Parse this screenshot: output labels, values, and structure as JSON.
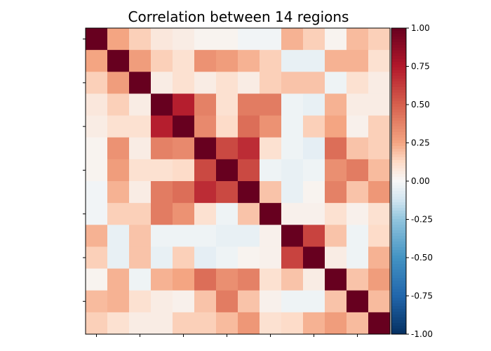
{
  "chart_data": {
    "type": "heatmap",
    "title": "Correlation between 14 regions",
    "xlabel": "",
    "ylabel": "",
    "size": 14,
    "colormap": "RdBu_r",
    "vmin": -1.0,
    "vmax": 1.0,
    "colorbar_ticks": [
      "1.00",
      "0.75",
      "0.50",
      "0.25",
      "0.00",
      "-0.25",
      "-0.50",
      "-0.75",
      "-1.00"
    ],
    "colorbar_values": [
      1.0,
      0.75,
      0.5,
      0.25,
      0.0,
      -0.25,
      -0.5,
      -0.75,
      -1.0
    ],
    "matrix": [
      [
        1.0,
        0.25,
        0.15,
        0.07,
        0.05,
        0.02,
        0.02,
        -0.02,
        -0.02,
        0.22,
        0.15,
        0.02,
        0.2,
        0.15
      ],
      [
        0.25,
        1.0,
        0.28,
        0.15,
        0.1,
        0.32,
        0.28,
        0.22,
        0.15,
        -0.05,
        -0.05,
        0.22,
        0.22,
        0.1
      ],
      [
        0.15,
        0.28,
        1.0,
        0.05,
        0.1,
        0.05,
        0.1,
        0.05,
        0.15,
        0.18,
        0.18,
        -0.03,
        0.1,
        0.05
      ],
      [
        0.07,
        0.15,
        0.05,
        1.0,
        0.73,
        0.38,
        0.1,
        0.4,
        0.4,
        -0.03,
        -0.05,
        0.22,
        0.05,
        0.05
      ],
      [
        0.05,
        0.1,
        0.1,
        0.73,
        1.0,
        0.35,
        0.12,
        0.45,
        0.32,
        -0.03,
        0.15,
        0.25,
        0.03,
        0.15
      ],
      [
        0.02,
        0.32,
        0.05,
        0.38,
        0.35,
        1.0,
        0.58,
        0.68,
        0.1,
        -0.03,
        -0.06,
        0.45,
        0.18,
        0.15
      ],
      [
        0.02,
        0.28,
        0.1,
        0.1,
        0.12,
        0.58,
        1.0,
        0.58,
        -0.03,
        -0.05,
        -0.03,
        0.33,
        0.4,
        0.2
      ],
      [
        -0.02,
        0.22,
        0.05,
        0.4,
        0.45,
        0.68,
        0.58,
        1.0,
        0.18,
        -0.05,
        0.02,
        0.38,
        0.18,
        0.3
      ],
      [
        -0.02,
        0.15,
        0.15,
        0.4,
        0.32,
        0.1,
        -0.03,
        0.18,
        1.0,
        0.03,
        0.03,
        0.1,
        0.03,
        0.1
      ],
      [
        0.22,
        -0.05,
        0.18,
        -0.03,
        -0.03,
        -0.03,
        -0.05,
        -0.05,
        0.03,
        1.0,
        0.6,
        0.18,
        -0.03,
        0.12
      ],
      [
        0.15,
        -0.05,
        0.18,
        -0.05,
        0.15,
        -0.06,
        -0.03,
        0.02,
        0.03,
        0.6,
        1.0,
        0.05,
        -0.03,
        0.22
      ],
      [
        0.02,
        0.22,
        -0.03,
        0.22,
        0.25,
        0.45,
        0.33,
        0.38,
        0.1,
        0.18,
        0.05,
        1.0,
        0.18,
        0.28
      ],
      [
        0.2,
        0.22,
        0.1,
        0.05,
        0.03,
        0.18,
        0.4,
        0.18,
        0.03,
        -0.03,
        -0.03,
        0.18,
        1.0,
        0.2
      ],
      [
        0.15,
        0.1,
        0.05,
        0.05,
        0.15,
        0.15,
        0.2,
        0.3,
        0.1,
        0.12,
        0.22,
        0.28,
        0.2,
        1.0
      ]
    ]
  }
}
